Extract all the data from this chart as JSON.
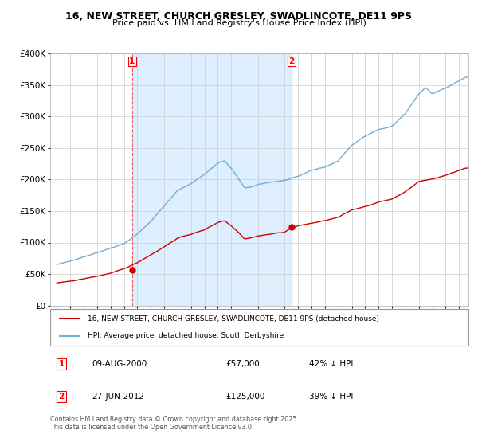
{
  "title": "16, NEW STREET, CHURCH GRESLEY, SWADLINCOTE, DE11 9PS",
  "subtitle": "Price paid vs. HM Land Registry's House Price Index (HPI)",
  "legend_line1": "16, NEW STREET, CHURCH GRESLEY, SWADLINCOTE, DE11 9PS (detached house)",
  "legend_line2": "HPI: Average price, detached house, South Derbyshire",
  "footer": "Contains HM Land Registry data © Crown copyright and database right 2025.\nThis data is licensed under the Open Government Licence v3.0.",
  "transaction1_date": "09-AUG-2000",
  "transaction1_price": "£57,000",
  "transaction1_hpi": "42% ↓ HPI",
  "transaction1_year": 2000.6,
  "transaction1_price_val": 57000,
  "transaction2_date": "27-JUN-2012",
  "transaction2_price": "£125,000",
  "transaction2_hpi": "39% ↓ HPI",
  "transaction2_year": 2012.5,
  "transaction2_price_val": 125000,
  "hpi_color": "#6eadd4",
  "price_color": "#cc0000",
  "shade_color": "#ddeeff",
  "grid_color": "#cccccc",
  "ylim": [
    0,
    400000
  ],
  "xlim_start": 1994.5,
  "xlim_end": 2025.7,
  "yticks": [
    0,
    50000,
    100000,
    150000,
    200000,
    250000,
    300000,
    350000,
    400000
  ],
  "ylabels": [
    "£0",
    "£50K",
    "£100K",
    "£150K",
    "£200K",
    "£250K",
    "£300K",
    "£350K",
    "£400K"
  ],
  "xticks_start": 1995,
  "xticks_end": 2026,
  "hpi_keypoints_x": [
    1995,
    1996,
    1997,
    1998,
    1999,
    2000,
    2001,
    2002,
    2003,
    2004,
    2005,
    2006,
    2007,
    2007.5,
    2008,
    2008.5,
    2009,
    2009.5,
    2010,
    2011,
    2012,
    2013,
    2014,
    2015,
    2016,
    2017,
    2018,
    2019,
    2020,
    2021,
    2022,
    2022.5,
    2023,
    2024,
    2025.5
  ],
  "hpi_keypoints_y": [
    65000,
    70000,
    78000,
    85000,
    93000,
    100000,
    115000,
    135000,
    160000,
    185000,
    195000,
    210000,
    228000,
    232000,
    220000,
    205000,
    188000,
    190000,
    193000,
    197000,
    200000,
    205000,
    215000,
    220000,
    230000,
    255000,
    270000,
    280000,
    285000,
    305000,
    335000,
    345000,
    335000,
    345000,
    362000
  ],
  "price_keypoints_x": [
    1995,
    1996,
    1997,
    1998,
    1999,
    2000,
    2001,
    2002,
    2003,
    2004,
    2005,
    2006,
    2007,
    2007.5,
    2008,
    2008.5,
    2009,
    2009.5,
    2010,
    2011,
    2012,
    2012.5,
    2013,
    2014,
    2015,
    2016,
    2017,
    2018,
    2019,
    2020,
    2021,
    2022,
    2023,
    2024,
    2025.5
  ],
  "price_keypoints_y": [
    36000,
    38000,
    42000,
    46000,
    51000,
    57000,
    67000,
    80000,
    93000,
    107000,
    113000,
    120000,
    132000,
    135000,
    127000,
    118000,
    107000,
    109000,
    112000,
    115000,
    118000,
    125000,
    128000,
    132000,
    136000,
    141000,
    152000,
    158000,
    165000,
    170000,
    182000,
    198000,
    202000,
    208000,
    220000
  ]
}
